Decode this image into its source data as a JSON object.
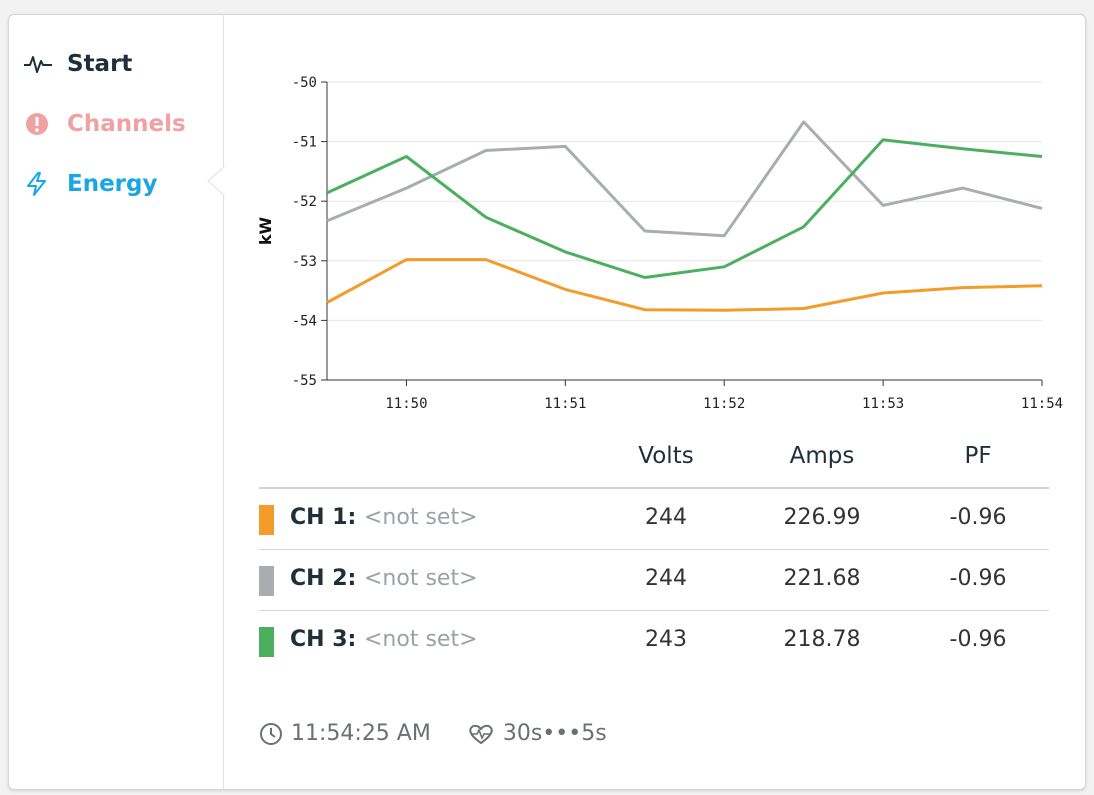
{
  "nav": {
    "items": [
      {
        "label": "Start",
        "icon": "pulse-icon",
        "color": "#1f2f3a"
      },
      {
        "label": "Channels",
        "icon": "alert-circle-icon",
        "color": "#f0a1a1"
      },
      {
        "label": "Energy",
        "icon": "lightning-icon",
        "color": "#1aa6e4"
      }
    ],
    "active": "Energy"
  },
  "chart_data": {
    "type": "line",
    "title": "",
    "xlabel": "",
    "ylabel": "kW",
    "x_ticks": [
      "11:50",
      "11:51",
      "11:52",
      "11:53",
      "11:54"
    ],
    "y_ticks": [
      "-50",
      "-51",
      "-52",
      "-53",
      "-54",
      "-55"
    ],
    "ylim": [
      -55,
      -50
    ],
    "grid": true,
    "x": [
      "11:49:30",
      "11:50:00",
      "11:50:30",
      "11:51:00",
      "11:51:30",
      "11:52:00",
      "11:52:30",
      "11:53:00",
      "11:53:30",
      "11:54:00"
    ],
    "series": [
      {
        "color": "#f39c2a",
        "values": [
          -53.7,
          -52.98,
          -52.98,
          -53.48,
          -53.82,
          -53.83,
          -53.8,
          -53.54,
          -53.45,
          -53.42
        ]
      },
      {
        "color": "#a9adb0",
        "values": [
          -52.33,
          -51.78,
          -51.15,
          -51.08,
          -52.5,
          -52.58,
          -50.67,
          -52.07,
          -51.78,
          -52.12
        ]
      },
      {
        "color": "#4caf60",
        "values": [
          -51.86,
          -51.25,
          -52.27,
          -52.85,
          -53.28,
          -53.1,
          -52.43,
          -50.97,
          -51.12,
          -51.25
        ]
      }
    ]
  },
  "table": {
    "headers": {
      "volts": "Volts",
      "amps": "Amps",
      "pf": "PF"
    },
    "rows": [
      {
        "channel": "CH 1:",
        "name": "<not set>",
        "color": "#f39c2a",
        "volts": "244",
        "amps": "226.99",
        "pf": "-0.96"
      },
      {
        "channel": "CH 2:",
        "name": "<not set>",
        "color": "#a9adb0",
        "volts": "244",
        "amps": "221.68",
        "pf": "-0.96"
      },
      {
        "channel": "CH 3:",
        "name": "<not set>",
        "color": "#4caf60",
        "volts": "243",
        "amps": "218.78",
        "pf": "-0.96"
      }
    ]
  },
  "footer": {
    "time": "11:54:25 AM",
    "heartbeat": "30s•••5s"
  }
}
